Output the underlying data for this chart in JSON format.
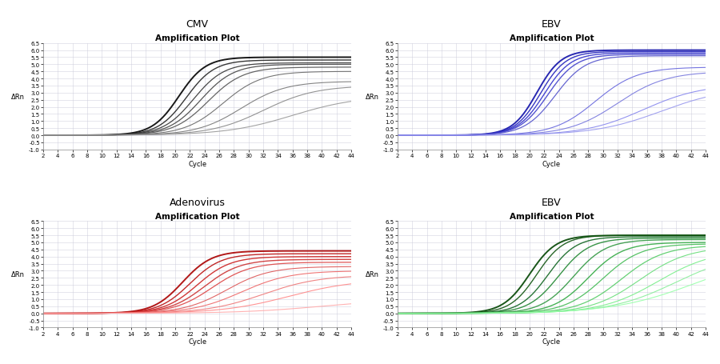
{
  "subplots": [
    {
      "title": "CMV",
      "subtitle": "Amplification Plot",
      "color": "#1a1a1a",
      "colors": [
        "#000000",
        "#222222",
        "#333333",
        "#444444",
        "#555555",
        "#666666",
        "#777777",
        "#888888",
        "#999999"
      ],
      "curve_params": [
        {
          "midpoint": 20.5,
          "rate": 0.55,
          "plateau": 5.5,
          "lw": 1.4
        },
        {
          "midpoint": 21.5,
          "rate": 0.52,
          "plateau": 5.3,
          "lw": 1.0
        },
        {
          "midpoint": 22.5,
          "rate": 0.48,
          "plateau": 5.1,
          "lw": 0.9
        },
        {
          "midpoint": 23.5,
          "rate": 0.45,
          "plateau": 5.0,
          "lw": 0.9
        },
        {
          "midpoint": 24.5,
          "rate": 0.42,
          "plateau": 4.8,
          "lw": 0.9
        },
        {
          "midpoint": 26.5,
          "rate": 0.38,
          "plateau": 4.5,
          "lw": 0.8
        },
        {
          "midpoint": 29.0,
          "rate": 0.33,
          "plateau": 3.8,
          "lw": 0.8
        },
        {
          "midpoint": 32.0,
          "rate": 0.28,
          "plateau": 3.5,
          "lw": 0.8
        },
        {
          "midpoint": 36.0,
          "rate": 0.22,
          "plateau": 2.8,
          "lw": 0.8
        }
      ]
    },
    {
      "title": "EBV",
      "subtitle": "Amplification Plot",
      "color": "#2222bb",
      "colors": [
        "#1111aa",
        "#2222bb",
        "#3333cc",
        "#4444cc",
        "#5555cc",
        "#6666dd",
        "#7777dd",
        "#8888ee",
        "#9999ee"
      ],
      "curve_params": [
        {
          "midpoint": 21.0,
          "rate": 0.6,
          "plateau": 6.0,
          "lw": 1.4
        },
        {
          "midpoint": 21.5,
          "rate": 0.58,
          "plateau": 5.9,
          "lw": 1.0
        },
        {
          "midpoint": 22.0,
          "rate": 0.55,
          "plateau": 5.8,
          "lw": 1.0
        },
        {
          "midpoint": 22.5,
          "rate": 0.52,
          "plateau": 5.7,
          "lw": 1.0
        },
        {
          "midpoint": 23.5,
          "rate": 0.48,
          "plateau": 5.6,
          "lw": 0.9
        },
        {
          "midpoint": 29.0,
          "rate": 0.35,
          "plateau": 4.8,
          "lw": 0.8
        },
        {
          "midpoint": 32.0,
          "rate": 0.3,
          "plateau": 4.5,
          "lw": 0.8
        },
        {
          "midpoint": 35.5,
          "rate": 0.25,
          "plateau": 3.6,
          "lw": 0.8
        },
        {
          "midpoint": 38.0,
          "rate": 0.22,
          "plateau": 3.4,
          "lw": 0.8
        }
      ]
    },
    {
      "title": "Adenovirus",
      "subtitle": "Amplification Plot",
      "color": "#cc1111",
      "colors": [
        "#aa0000",
        "#bb1111",
        "#cc2222",
        "#cc3333",
        "#dd4444",
        "#dd5555",
        "#ee6666",
        "#ee7777",
        "#ff8888",
        "#ffaaaa"
      ],
      "curve_params": [
        {
          "midpoint": 21.0,
          "rate": 0.5,
          "plateau": 4.4,
          "lw": 1.4
        },
        {
          "midpoint": 22.0,
          "rate": 0.47,
          "plateau": 4.2,
          "lw": 1.0
        },
        {
          "midpoint": 23.0,
          "rate": 0.44,
          "plateau": 4.0,
          "lw": 1.0
        },
        {
          "midpoint": 24.0,
          "rate": 0.41,
          "plateau": 3.8,
          "lw": 1.0
        },
        {
          "midpoint": 25.0,
          "rate": 0.38,
          "plateau": 3.6,
          "lw": 0.9
        },
        {
          "midpoint": 27.0,
          "rate": 0.34,
          "plateau": 3.3,
          "lw": 0.8
        },
        {
          "midpoint": 29.0,
          "rate": 0.3,
          "plateau": 3.0,
          "lw": 0.8
        },
        {
          "midpoint": 32.0,
          "rate": 0.26,
          "plateau": 2.7,
          "lw": 0.8
        },
        {
          "midpoint": 35.5,
          "rate": 0.22,
          "plateau": 2.4,
          "lw": 0.8
        },
        {
          "midpoint": 40.0,
          "rate": 0.18,
          "plateau": 1.0,
          "lw": 0.8
        }
      ]
    },
    {
      "title": "EBV",
      "subtitle": "Amplification Plot",
      "color": "#116622",
      "colors": [
        "#004400",
        "#115511",
        "#116622",
        "#228833",
        "#339944",
        "#33aa44",
        "#44bb55",
        "#55cc66",
        "#66dd77",
        "#77ee88",
        "#88ee99",
        "#99ffaa"
      ],
      "curve_params": [
        {
          "midpoint": 20.0,
          "rate": 0.55,
          "plateau": 5.5,
          "lw": 1.4
        },
        {
          "midpoint": 21.0,
          "rate": 0.55,
          "plateau": 5.5,
          "lw": 1.0
        },
        {
          "midpoint": 22.5,
          "rate": 0.52,
          "plateau": 5.4,
          "lw": 1.0
        },
        {
          "midpoint": 24.0,
          "rate": 0.48,
          "plateau": 5.3,
          "lw": 1.0
        },
        {
          "midpoint": 26.0,
          "rate": 0.45,
          "plateau": 5.2,
          "lw": 1.0
        },
        {
          "midpoint": 28.0,
          "rate": 0.42,
          "plateau": 5.0,
          "lw": 1.0
        },
        {
          "midpoint": 30.0,
          "rate": 0.38,
          "plateau": 4.9,
          "lw": 0.9
        },
        {
          "midpoint": 32.5,
          "rate": 0.34,
          "plateau": 4.8,
          "lw": 0.9
        },
        {
          "midpoint": 35.0,
          "rate": 0.3,
          "plateau": 4.7,
          "lw": 0.8
        },
        {
          "midpoint": 37.5,
          "rate": 0.26,
          "plateau": 4.5,
          "lw": 0.8
        },
        {
          "midpoint": 40.0,
          "rate": 0.22,
          "plateau": 4.4,
          "lw": 0.8
        },
        {
          "midpoint": 42.5,
          "rate": 0.18,
          "plateau": 4.2,
          "lw": 0.8
        }
      ]
    }
  ],
  "x_min": 2,
  "x_max": 44,
  "y_min": -1.0,
  "y_max": 6.5,
  "y_ticks": [
    -1.0,
    -0.5,
    0.0,
    0.5,
    1.0,
    1.5,
    2.0,
    2.5,
    3.0,
    3.5,
    4.0,
    4.5,
    5.0,
    5.5,
    6.0,
    6.5
  ],
  "x_ticks": [
    2,
    4,
    6,
    8,
    10,
    12,
    14,
    16,
    18,
    20,
    22,
    24,
    26,
    28,
    30,
    32,
    34,
    36,
    38,
    40,
    42,
    44
  ],
  "xlabel": "Cycle",
  "ylabel": "ΔRn",
  "bg_color": "#ffffff",
  "grid_color": "#c8c8d8",
  "title_fontsize": 9,
  "subtitle_fontsize": 7.5,
  "axis_label_fontsize": 6,
  "tick_fontsize": 5
}
